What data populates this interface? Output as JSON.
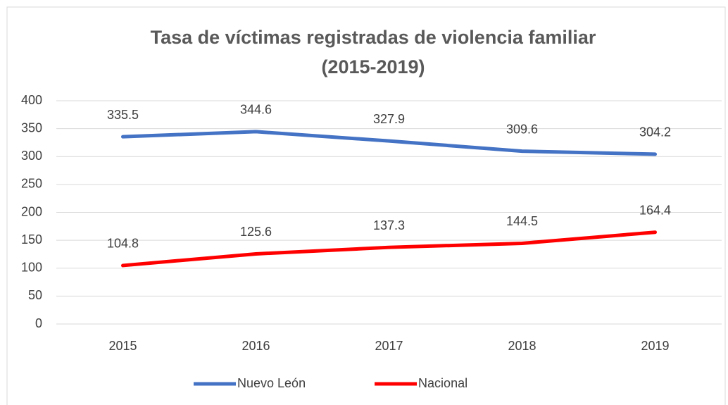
{
  "chart_data": {
    "type": "line",
    "title": [
      "Tasa de víctimas registradas de violencia familiar",
      "(2015-2019)"
    ],
    "categories": [
      "2015",
      "2016",
      "2017",
      "2018",
      "2019"
    ],
    "series": [
      {
        "name": "Nuevo León",
        "color": "#4472c4",
        "values": [
          335.5,
          344.6,
          327.9,
          309.6,
          304.2
        ]
      },
      {
        "name": "Nacional",
        "color": "#ff0000",
        "values": [
          104.8,
          125.6,
          137.3,
          144.5,
          164.4
        ]
      }
    ],
    "ylim": [
      0,
      400
    ],
    "yticks": [
      0,
      50,
      100,
      150,
      200,
      250,
      300,
      350,
      400
    ],
    "grid": true,
    "legend": "bottom",
    "data_labels": true
  }
}
